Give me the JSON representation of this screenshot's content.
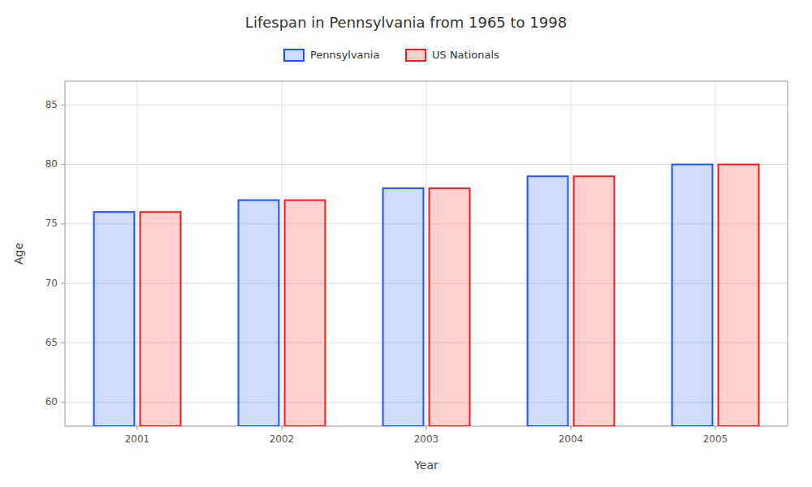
{
  "chart_data": {
    "type": "bar",
    "title": "Lifespan in Pennsylvania from 1965 to 1998",
    "xlabel": "Year",
    "ylabel": "Age",
    "categories": [
      2001,
      2002,
      2003,
      2004,
      2005
    ],
    "series": [
      {
        "name": "Pennsylvania",
        "color": "#1a56ff",
        "values": [
          76,
          77,
          78,
          79,
          80
        ]
      },
      {
        "name": "US Nationals",
        "color": "#ff1a1a",
        "values": [
          76,
          77,
          78,
          79,
          80
        ]
      }
    ],
    "ylim": [
      58,
      87
    ],
    "yticks": [
      60,
      65,
      70,
      75,
      80,
      85
    ],
    "grid": true,
    "legend": "top"
  }
}
